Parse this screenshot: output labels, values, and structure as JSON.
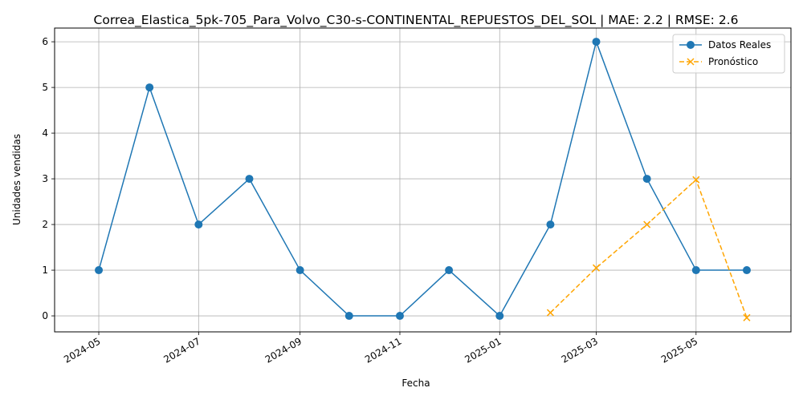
{
  "chart_data": {
    "type": "line",
    "title": "Correa_Elastica_5pk-705_Para_Volvo_C30-s-CONTINENTAL_REPUESTOS_DEL_SOL | MAE: 2.2 | RMSE: 2.6",
    "xlabel": "Fecha",
    "ylabel": "Unidades vendidas",
    "x_ticks": [
      "2024-05",
      "2024-07",
      "2024-09",
      "2024-11",
      "2025-01",
      "2025-03",
      "2025-05"
    ],
    "y_ticks": [
      0,
      1,
      2,
      3,
      4,
      5,
      6
    ],
    "xlim": [
      "2024-04-04",
      "2025-06-28"
    ],
    "ylim": [
      -0.35,
      6.3
    ],
    "grid": true,
    "legend_position": "top-right",
    "series": [
      {
        "name": "Datos Reales",
        "color": "#1f77b4",
        "linestyle": "solid",
        "marker": "circle",
        "x": [
          "2024-05-01",
          "2024-06-01",
          "2024-07-01",
          "2024-08-01",
          "2024-09-01",
          "2024-10-01",
          "2024-11-01",
          "2024-12-01",
          "2025-01-01",
          "2025-02-01",
          "2025-03-01",
          "2025-04-01",
          "2025-05-01",
          "2025-06-01"
        ],
        "y": [
          1,
          5,
          2,
          3,
          1,
          0,
          0,
          1,
          0,
          2,
          6,
          3,
          1,
          1
        ]
      },
      {
        "name": "Pronóstico",
        "color": "#ffa500",
        "linestyle": "dashed",
        "marker": "x",
        "x": [
          "2025-02-01",
          "2025-03-01",
          "2025-04-01",
          "2025-05-01",
          "2025-06-01"
        ],
        "y": [
          0.07,
          1.05,
          2.0,
          2.98,
          -0.04
        ]
      }
    ]
  }
}
